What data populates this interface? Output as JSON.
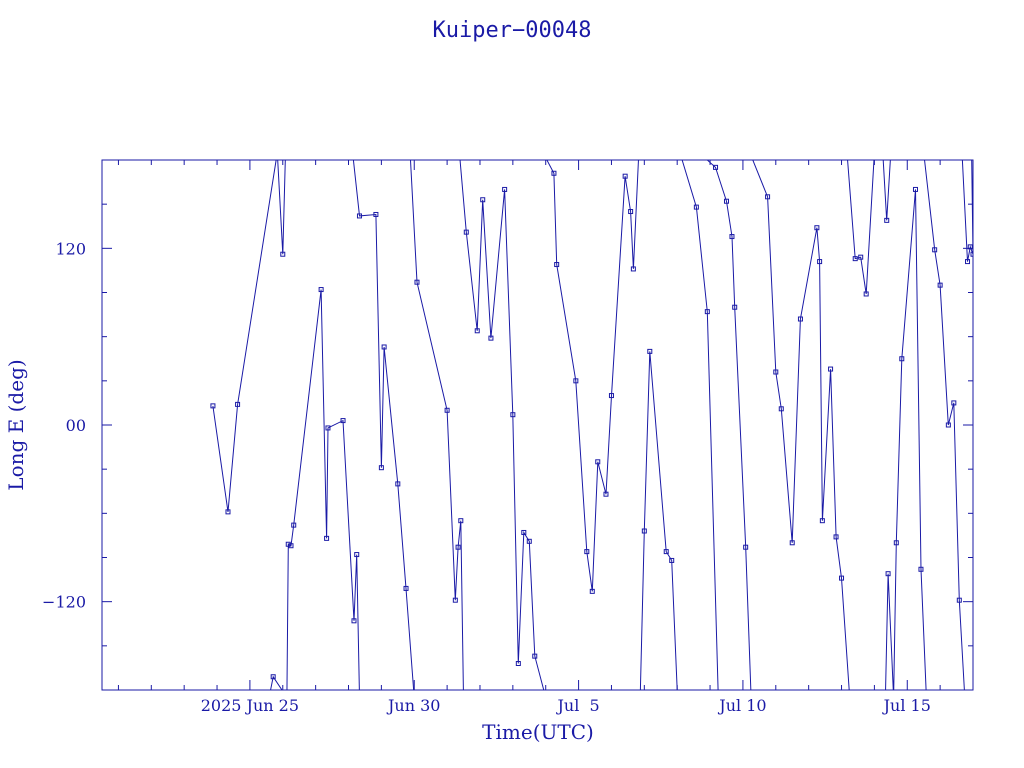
{
  "chart_data": {
    "type": "line",
    "title": "Kuiper−00048",
    "xlabel": "Time(UTC)",
    "ylabel": "Long E (deg)",
    "x_unit": "days",
    "xlim": [
      "2025-06-20T12:00",
      "2025-07-17T00:00"
    ],
    "ylim": [
      -180,
      180
    ],
    "x_ticks": [
      {
        "label": "2025 Jun 25",
        "date": "2025-06-25"
      },
      {
        "label": "Jun 30",
        "date": "2025-06-30"
      },
      {
        "label": "Jul  5",
        "date": "2025-07-05"
      },
      {
        "label": "Jul 10",
        "date": "2025-07-10"
      },
      {
        "label": "Jul 15",
        "date": "2025-07-15"
      }
    ],
    "y_ticks": [
      {
        "label": "120",
        "value": 120
      },
      {
        "label": "00",
        "value": 0
      },
      {
        "label": "−120",
        "value": -120
      }
    ],
    "grid": false,
    "wraps_at": [
      -180,
      180
    ],
    "series": [
      {
        "points": [
          [
            "2025-06-23T21:00",
            13
          ],
          [
            "2025-06-24T08:00",
            -59
          ],
          [
            "2025-06-24T15:00",
            14
          ],
          [
            "2025-06-25T20:00",
            185
          ],
          [
            "2025-06-26T00:00",
            116
          ],
          [
            "2025-06-26T02:00",
            185
          ],
          [
            "2025-06-25T14:00",
            -185
          ],
          [
            "2025-06-25T17:00",
            -171
          ],
          [
            "2025-06-26T03:00",
            -185
          ],
          [
            "2025-06-26T04:00",
            -81
          ],
          [
            "2025-06-26T06:00",
            -82
          ],
          [
            "2025-06-26T08:00",
            -68
          ],
          [
            "2025-06-27T04:00",
            92
          ],
          [
            "2025-06-27T08:00",
            -77
          ],
          [
            "2025-06-27T09:00",
            -2
          ],
          [
            "2025-06-27T20:00",
            3
          ],
          [
            "2025-06-28T04:00",
            -133
          ],
          [
            "2025-06-28T06:00",
            -88
          ],
          [
            "2025-06-28T08:00",
            -185
          ],
          [
            "2025-06-28T03:00",
            185
          ],
          [
            "2025-06-28T08:00",
            142
          ],
          [
            "2025-06-28T20:00",
            143
          ],
          [
            "2025-06-29T00:00",
            -29
          ],
          [
            "2025-06-29T02:00",
            53
          ],
          [
            "2025-06-29T12:00",
            -40
          ],
          [
            "2025-06-29T18:00",
            -111
          ],
          [
            "2025-06-30T00:00",
            -185
          ],
          [
            "2025-06-29T21:00",
            185
          ],
          [
            "2025-06-30T02:00",
            97
          ],
          [
            "2025-07-01T00:00",
            10
          ],
          [
            "2025-07-01T06:00",
            -119
          ],
          [
            "2025-07-01T08:00",
            -83
          ],
          [
            "2025-07-01T10:00",
            -65
          ],
          [
            "2025-07-01T12:00",
            -185
          ],
          [
            "2025-07-01T09:00",
            185
          ],
          [
            "2025-07-01T14:00",
            131
          ],
          [
            "2025-07-01T22:00",
            64
          ],
          [
            "2025-07-02T02:00",
            153
          ],
          [
            "2025-07-02T08:00",
            59
          ],
          [
            "2025-07-02T18:00",
            160
          ],
          [
            "2025-07-03T00:00",
            7
          ],
          [
            "2025-07-03T04:00",
            -162
          ],
          [
            "2025-07-03T08:00",
            -73
          ],
          [
            "2025-07-03T12:00",
            -79
          ],
          [
            "2025-07-03T16:00",
            -157
          ],
          [
            "2025-07-04T00:00",
            -185
          ],
          [
            "2025-07-03T22:00",
            185
          ],
          [
            "2025-07-04T06:00",
            171
          ],
          [
            "2025-07-04T08:00",
            109
          ],
          [
            "2025-07-04T22:00",
            30
          ],
          [
            "2025-07-05T06:00",
            -86
          ],
          [
            "2025-07-05T10:00",
            -113
          ],
          [
            "2025-07-05T14:00",
            -25
          ],
          [
            "2025-07-05T20:00",
            -47
          ],
          [
            "2025-07-06T00:00",
            20
          ],
          [
            "2025-07-06T10:00",
            169
          ],
          [
            "2025-07-06T14:00",
            145
          ],
          [
            "2025-07-06T16:00",
            106
          ],
          [
            "2025-07-06T20:00",
            185
          ],
          [
            "2025-07-06T21:00",
            -185
          ],
          [
            "2025-07-07T00:00",
            -72
          ],
          [
            "2025-07-07T04:00",
            50
          ],
          [
            "2025-07-07T16:00",
            -86
          ],
          [
            "2025-07-07T20:00",
            -92
          ],
          [
            "2025-07-08T00:00",
            -180
          ],
          [
            "2025-07-08T02:00",
            185
          ],
          [
            "2025-07-08T14:00",
            148
          ],
          [
            "2025-07-08T22:00",
            77
          ],
          [
            "2025-07-09T06:00",
            -185
          ],
          [
            "2025-07-08T16:00",
            185
          ],
          [
            "2025-07-09T04:00",
            175
          ],
          [
            "2025-07-09T12:00",
            152
          ],
          [
            "2025-07-09T16:00",
            128
          ],
          [
            "2025-07-09T18:00",
            80
          ],
          [
            "2025-07-10T02:00",
            -83
          ],
          [
            "2025-07-10T06:00",
            -185
          ],
          [
            "2025-07-10T05:00",
            185
          ],
          [
            "2025-07-10T18:00",
            155
          ],
          [
            "2025-07-11T00:00",
            36
          ],
          [
            "2025-07-11T04:00",
            11
          ],
          [
            "2025-07-11T12:00",
            -80
          ],
          [
            "2025-07-11T18:00",
            72
          ],
          [
            "2025-07-12T06:00",
            134
          ],
          [
            "2025-07-12T08:00",
            111
          ],
          [
            "2025-07-12T10:00",
            -65
          ],
          [
            "2025-07-12T16:00",
            38
          ],
          [
            "2025-07-12T20:00",
            -76
          ],
          [
            "2025-07-13T00:00",
            -104
          ],
          [
            "2025-07-13T06:00",
            -185
          ],
          [
            "2025-07-13T04:00",
            185
          ],
          [
            "2025-07-13T10:00",
            113
          ],
          [
            "2025-07-13T14:00",
            114
          ],
          [
            "2025-07-13T18:00",
            89
          ],
          [
            "2025-07-14T00:00",
            185
          ],
          [
            "2025-07-14T06:00",
            187
          ],
          [
            "2025-07-14T09:00",
            139
          ],
          [
            "2025-07-14T12:00",
            185
          ],
          [
            "2025-07-14T08:00",
            -185
          ],
          [
            "2025-07-14T10:00",
            -101
          ],
          [
            "2025-07-14T14:00",
            -185
          ],
          [
            "2025-07-14T16:00",
            -80
          ],
          [
            "2025-07-14T20:00",
            45
          ],
          [
            "2025-07-15T06:00",
            160
          ],
          [
            "2025-07-15T10:00",
            -98
          ],
          [
            "2025-07-15T14:00",
            -185
          ],
          [
            "2025-07-15T12:00",
            185
          ],
          [
            "2025-07-15T20:00",
            119
          ],
          [
            "2025-07-16T00:00",
            95
          ],
          [
            "2025-07-16T06:00",
            0
          ],
          [
            "2025-07-16T10:00",
            15
          ],
          [
            "2025-07-16T14:00",
            -119
          ],
          [
            "2025-07-16T18:00",
            -185
          ],
          [
            "2025-07-16T16:00",
            185
          ],
          [
            "2025-07-16T20:00",
            111
          ],
          [
            "2025-07-16T22:00",
            121
          ],
          [
            "2025-07-17T00:00",
            116
          ],
          [
            "2025-07-16T23:00",
            185
          ],
          [
            "2025-07-16T22:30",
            -185
          ]
        ]
      }
    ]
  }
}
